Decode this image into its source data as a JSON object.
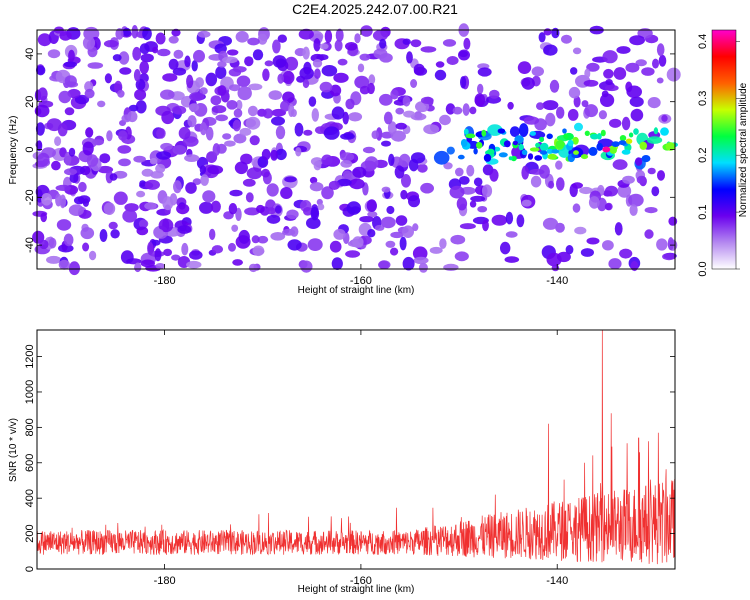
{
  "title": "C2E4.2025.242.07.00.R21",
  "chart_data": [
    {
      "type": "heatmap",
      "name": "spectrogram",
      "xlabel": "Height of straight line (km)",
      "ylabel": "Frequency (Hz)",
      "xlim": [
        -193,
        -128
      ],
      "ylim": [
        -50,
        50
      ],
      "xticks": [
        -180,
        -160,
        -140
      ],
      "yticks": [
        -40,
        -20,
        0,
        20,
        40
      ],
      "colorbar": {
        "label": "Normalized spectral amplitude",
        "range": [
          0.0,
          0.42
        ],
        "ticks": [
          "0.0",
          "0.1",
          "0.2",
          "0.3",
          "0.4"
        ],
        "colors": [
          "#ffffff",
          "#b488f0",
          "#6a00ee",
          "#0000ff",
          "#00dfff",
          "#00ff40",
          "#c8ff00",
          "#ff6000",
          "#ff0000",
          "#ff00cc"
        ]
      },
      "signal_band": {
        "x_start": -152,
        "x_end": -128,
        "freq_center": 2,
        "peak_value": 0.41,
        "peak_x": -135,
        "peak_freq": 0
      }
    },
    {
      "type": "line",
      "name": "snr",
      "xlabel": "Height of straight line (km)",
      "ylabel": "SNR (10 * v/v)",
      "xlim": [
        -193,
        -128
      ],
      "ylim": [
        0,
        1350
      ],
      "xticks": [
        -180,
        -160,
        -140
      ],
      "yticks": [
        0,
        200,
        400,
        600,
        800,
        1000,
        1200
      ],
      "color": "#f03030",
      "baseline_mean": 150,
      "spikes": [
        {
          "x": -135.4,
          "y": 1350
        },
        {
          "x": -134.5,
          "y": 880
        },
        {
          "x": -140.9,
          "y": 820
        },
        {
          "x": -131.7,
          "y": 740
        },
        {
          "x": -137.2,
          "y": 600
        },
        {
          "x": -146.3,
          "y": 420
        }
      ]
    }
  ]
}
